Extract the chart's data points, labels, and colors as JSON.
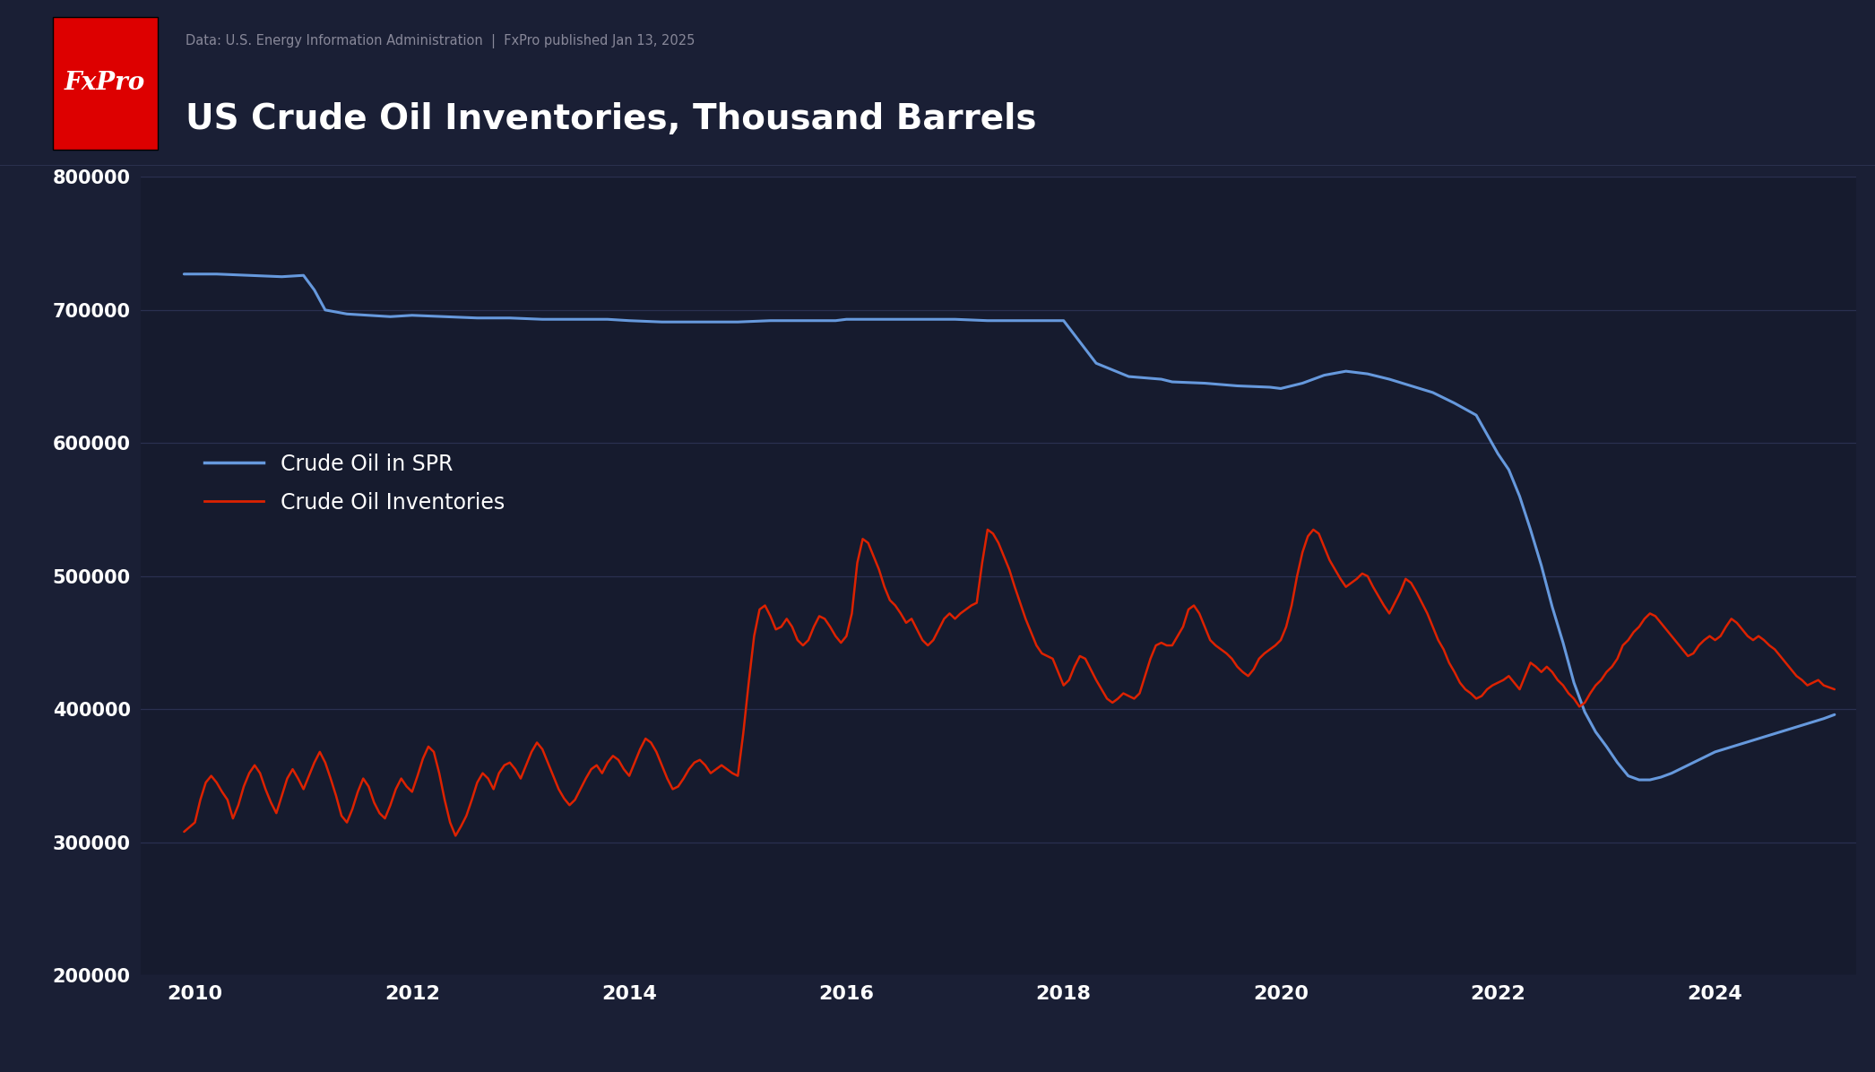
{
  "title": "US Crude Oil Inventories, Thousand Barrels",
  "subtitle": "Data: U.S. Energy Information Administration  |  FxPro published Jan 13, 2025",
  "logo_text": "FxPro",
  "background_color": "#1a1f35",
  "header_color": "#1e2338",
  "plot_bg_color": "#161b2e",
  "text_color": "#ffffff",
  "subtitle_color": "#888899",
  "grid_color": "#2a3050",
  "line_color_spr": "#6699dd",
  "line_color_inv": "#dd2200",
  "logo_bg": "#dd0000",
  "legend_spr": "Crude Oil in SPR",
  "legend_inv": "Crude Oil Inventories",
  "ylim": [
    200000,
    800000
  ],
  "yticks": [
    200000,
    300000,
    400000,
    500000,
    600000,
    700000,
    800000
  ],
  "xticks": [
    2010,
    2012,
    2014,
    2016,
    2018,
    2020,
    2022,
    2024
  ],
  "xlim_start": 2009.5,
  "xlim_end": 2025.3,
  "spr_data": [
    [
      2009.9,
      727000
    ],
    [
      2010.0,
      727000
    ],
    [
      2010.2,
      727000
    ],
    [
      2010.5,
      726000
    ],
    [
      2010.8,
      725000
    ],
    [
      2011.0,
      726000
    ],
    [
      2011.1,
      715000
    ],
    [
      2011.2,
      700000
    ],
    [
      2011.4,
      697000
    ],
    [
      2011.6,
      696000
    ],
    [
      2011.8,
      695000
    ],
    [
      2012.0,
      696000
    ],
    [
      2012.3,
      695000
    ],
    [
      2012.6,
      694000
    ],
    [
      2012.9,
      694000
    ],
    [
      2013.2,
      693000
    ],
    [
      2013.5,
      693000
    ],
    [
      2013.8,
      693000
    ],
    [
      2014.0,
      692000
    ],
    [
      2014.3,
      691000
    ],
    [
      2014.6,
      691000
    ],
    [
      2014.9,
      691000
    ],
    [
      2015.0,
      691000
    ],
    [
      2015.3,
      692000
    ],
    [
      2015.6,
      692000
    ],
    [
      2015.9,
      692000
    ],
    [
      2016.0,
      693000
    ],
    [
      2016.3,
      693000
    ],
    [
      2016.6,
      693000
    ],
    [
      2016.9,
      693000
    ],
    [
      2017.0,
      693000
    ],
    [
      2017.3,
      692000
    ],
    [
      2017.6,
      692000
    ],
    [
      2017.9,
      692000
    ],
    [
      2018.0,
      692000
    ],
    [
      2018.3,
      660000
    ],
    [
      2018.6,
      650000
    ],
    [
      2018.9,
      648000
    ],
    [
      2019.0,
      646000
    ],
    [
      2019.3,
      645000
    ],
    [
      2019.6,
      643000
    ],
    [
      2019.9,
      642000
    ],
    [
      2020.0,
      641000
    ],
    [
      2020.2,
      645000
    ],
    [
      2020.4,
      651000
    ],
    [
      2020.6,
      654000
    ],
    [
      2020.8,
      652000
    ],
    [
      2021.0,
      648000
    ],
    [
      2021.2,
      643000
    ],
    [
      2021.4,
      638000
    ],
    [
      2021.6,
      630000
    ],
    [
      2021.8,
      621000
    ],
    [
      2022.0,
      592000
    ],
    [
      2022.1,
      580000
    ],
    [
      2022.2,
      560000
    ],
    [
      2022.3,
      535000
    ],
    [
      2022.4,
      508000
    ],
    [
      2022.5,
      477000
    ],
    [
      2022.6,
      450000
    ],
    [
      2022.7,
      420000
    ],
    [
      2022.8,
      398000
    ],
    [
      2022.9,
      383000
    ],
    [
      2023.0,
      372000
    ],
    [
      2023.1,
      360000
    ],
    [
      2023.2,
      350000
    ],
    [
      2023.3,
      347000
    ],
    [
      2023.4,
      347000
    ],
    [
      2023.5,
      349000
    ],
    [
      2023.6,
      352000
    ],
    [
      2023.7,
      356000
    ],
    [
      2023.8,
      360000
    ],
    [
      2023.9,
      364000
    ],
    [
      2024.0,
      368000
    ],
    [
      2024.2,
      373000
    ],
    [
      2024.4,
      378000
    ],
    [
      2024.6,
      383000
    ],
    [
      2024.8,
      388000
    ],
    [
      2025.0,
      393000
    ],
    [
      2025.1,
      396000
    ]
  ],
  "inv_data": [
    [
      2009.9,
      308000
    ],
    [
      2010.0,
      315000
    ],
    [
      2010.05,
      332000
    ],
    [
      2010.1,
      345000
    ],
    [
      2010.15,
      350000
    ],
    [
      2010.2,
      345000
    ],
    [
      2010.25,
      338000
    ],
    [
      2010.3,
      332000
    ],
    [
      2010.35,
      318000
    ],
    [
      2010.4,
      328000
    ],
    [
      2010.45,
      342000
    ],
    [
      2010.5,
      352000
    ],
    [
      2010.55,
      358000
    ],
    [
      2010.6,
      352000
    ],
    [
      2010.65,
      340000
    ],
    [
      2010.7,
      330000
    ],
    [
      2010.75,
      322000
    ],
    [
      2010.8,
      335000
    ],
    [
      2010.85,
      348000
    ],
    [
      2010.9,
      355000
    ],
    [
      2010.95,
      348000
    ],
    [
      2011.0,
      340000
    ],
    [
      2011.05,
      350000
    ],
    [
      2011.1,
      360000
    ],
    [
      2011.15,
      368000
    ],
    [
      2011.2,
      360000
    ],
    [
      2011.25,
      348000
    ],
    [
      2011.3,
      335000
    ],
    [
      2011.35,
      320000
    ],
    [
      2011.4,
      315000
    ],
    [
      2011.45,
      325000
    ],
    [
      2011.5,
      338000
    ],
    [
      2011.55,
      348000
    ],
    [
      2011.6,
      342000
    ],
    [
      2011.65,
      330000
    ],
    [
      2011.7,
      322000
    ],
    [
      2011.75,
      318000
    ],
    [
      2011.8,
      328000
    ],
    [
      2011.85,
      340000
    ],
    [
      2011.9,
      348000
    ],
    [
      2011.95,
      342000
    ],
    [
      2012.0,
      338000
    ],
    [
      2012.05,
      350000
    ],
    [
      2012.1,
      363000
    ],
    [
      2012.15,
      372000
    ],
    [
      2012.2,
      368000
    ],
    [
      2012.25,
      352000
    ],
    [
      2012.3,
      332000
    ],
    [
      2012.35,
      315000
    ],
    [
      2012.4,
      305000
    ],
    [
      2012.45,
      312000
    ],
    [
      2012.5,
      320000
    ],
    [
      2012.55,
      332000
    ],
    [
      2012.6,
      345000
    ],
    [
      2012.65,
      352000
    ],
    [
      2012.7,
      348000
    ],
    [
      2012.75,
      340000
    ],
    [
      2012.8,
      352000
    ],
    [
      2012.85,
      358000
    ],
    [
      2012.9,
      360000
    ],
    [
      2012.95,
      355000
    ],
    [
      2013.0,
      348000
    ],
    [
      2013.05,
      358000
    ],
    [
      2013.1,
      368000
    ],
    [
      2013.15,
      375000
    ],
    [
      2013.2,
      370000
    ],
    [
      2013.25,
      360000
    ],
    [
      2013.3,
      350000
    ],
    [
      2013.35,
      340000
    ],
    [
      2013.4,
      333000
    ],
    [
      2013.45,
      328000
    ],
    [
      2013.5,
      332000
    ],
    [
      2013.55,
      340000
    ],
    [
      2013.6,
      348000
    ],
    [
      2013.65,
      355000
    ],
    [
      2013.7,
      358000
    ],
    [
      2013.75,
      352000
    ],
    [
      2013.8,
      360000
    ],
    [
      2013.85,
      365000
    ],
    [
      2013.9,
      362000
    ],
    [
      2013.95,
      355000
    ],
    [
      2014.0,
      350000
    ],
    [
      2014.05,
      360000
    ],
    [
      2014.1,
      370000
    ],
    [
      2014.15,
      378000
    ],
    [
      2014.2,
      375000
    ],
    [
      2014.25,
      368000
    ],
    [
      2014.3,
      358000
    ],
    [
      2014.35,
      348000
    ],
    [
      2014.4,
      340000
    ],
    [
      2014.45,
      342000
    ],
    [
      2014.5,
      348000
    ],
    [
      2014.55,
      355000
    ],
    [
      2014.6,
      360000
    ],
    [
      2014.65,
      362000
    ],
    [
      2014.7,
      358000
    ],
    [
      2014.75,
      352000
    ],
    [
      2014.8,
      355000
    ],
    [
      2014.85,
      358000
    ],
    [
      2014.9,
      355000
    ],
    [
      2014.95,
      352000
    ],
    [
      2015.0,
      350000
    ],
    [
      2015.05,
      382000
    ],
    [
      2015.1,
      420000
    ],
    [
      2015.15,
      455000
    ],
    [
      2015.2,
      475000
    ],
    [
      2015.25,
      478000
    ],
    [
      2015.3,
      470000
    ],
    [
      2015.35,
      460000
    ],
    [
      2015.4,
      462000
    ],
    [
      2015.45,
      468000
    ],
    [
      2015.5,
      462000
    ],
    [
      2015.55,
      452000
    ],
    [
      2015.6,
      448000
    ],
    [
      2015.65,
      452000
    ],
    [
      2015.7,
      462000
    ],
    [
      2015.75,
      470000
    ],
    [
      2015.8,
      468000
    ],
    [
      2015.85,
      462000
    ],
    [
      2015.9,
      455000
    ],
    [
      2015.95,
      450000
    ],
    [
      2016.0,
      455000
    ],
    [
      2016.05,
      472000
    ],
    [
      2016.1,
      510000
    ],
    [
      2016.15,
      528000
    ],
    [
      2016.2,
      525000
    ],
    [
      2016.25,
      515000
    ],
    [
      2016.3,
      505000
    ],
    [
      2016.35,
      492000
    ],
    [
      2016.4,
      482000
    ],
    [
      2016.45,
      478000
    ],
    [
      2016.5,
      472000
    ],
    [
      2016.55,
      465000
    ],
    [
      2016.6,
      468000
    ],
    [
      2016.65,
      460000
    ],
    [
      2016.7,
      452000
    ],
    [
      2016.75,
      448000
    ],
    [
      2016.8,
      452000
    ],
    [
      2016.85,
      460000
    ],
    [
      2016.9,
      468000
    ],
    [
      2016.95,
      472000
    ],
    [
      2017.0,
      468000
    ],
    [
      2017.05,
      472000
    ],
    [
      2017.1,
      475000
    ],
    [
      2017.15,
      478000
    ],
    [
      2017.2,
      480000
    ],
    [
      2017.25,
      510000
    ],
    [
      2017.3,
      535000
    ],
    [
      2017.35,
      532000
    ],
    [
      2017.4,
      525000
    ],
    [
      2017.45,
      515000
    ],
    [
      2017.5,
      505000
    ],
    [
      2017.55,
      492000
    ],
    [
      2017.6,
      480000
    ],
    [
      2017.65,
      468000
    ],
    [
      2017.7,
      458000
    ],
    [
      2017.75,
      448000
    ],
    [
      2017.8,
      442000
    ],
    [
      2017.85,
      440000
    ],
    [
      2017.9,
      438000
    ],
    [
      2017.95,
      428000
    ],
    [
      2018.0,
      418000
    ],
    [
      2018.05,
      422000
    ],
    [
      2018.1,
      432000
    ],
    [
      2018.15,
      440000
    ],
    [
      2018.2,
      438000
    ],
    [
      2018.25,
      430000
    ],
    [
      2018.3,
      422000
    ],
    [
      2018.35,
      415000
    ],
    [
      2018.4,
      408000
    ],
    [
      2018.45,
      405000
    ],
    [
      2018.5,
      408000
    ],
    [
      2018.55,
      412000
    ],
    [
      2018.6,
      410000
    ],
    [
      2018.65,
      408000
    ],
    [
      2018.7,
      412000
    ],
    [
      2018.75,
      425000
    ],
    [
      2018.8,
      438000
    ],
    [
      2018.85,
      448000
    ],
    [
      2018.9,
      450000
    ],
    [
      2018.95,
      448000
    ],
    [
      2019.0,
      448000
    ],
    [
      2019.05,
      455000
    ],
    [
      2019.1,
      462000
    ],
    [
      2019.15,
      475000
    ],
    [
      2019.2,
      478000
    ],
    [
      2019.25,
      472000
    ],
    [
      2019.3,
      462000
    ],
    [
      2019.35,
      452000
    ],
    [
      2019.4,
      448000
    ],
    [
      2019.45,
      445000
    ],
    [
      2019.5,
      442000
    ],
    [
      2019.55,
      438000
    ],
    [
      2019.6,
      432000
    ],
    [
      2019.65,
      428000
    ],
    [
      2019.7,
      425000
    ],
    [
      2019.75,
      430000
    ],
    [
      2019.8,
      438000
    ],
    [
      2019.85,
      442000
    ],
    [
      2019.9,
      445000
    ],
    [
      2019.95,
      448000
    ],
    [
      2020.0,
      452000
    ],
    [
      2020.05,
      462000
    ],
    [
      2020.1,
      478000
    ],
    [
      2020.15,
      500000
    ],
    [
      2020.2,
      518000
    ],
    [
      2020.25,
      530000
    ],
    [
      2020.3,
      535000
    ],
    [
      2020.35,
      532000
    ],
    [
      2020.4,
      522000
    ],
    [
      2020.45,
      512000
    ],
    [
      2020.5,
      505000
    ],
    [
      2020.55,
      498000
    ],
    [
      2020.6,
      492000
    ],
    [
      2020.65,
      495000
    ],
    [
      2020.7,
      498000
    ],
    [
      2020.75,
      502000
    ],
    [
      2020.8,
      500000
    ],
    [
      2020.85,
      492000
    ],
    [
      2020.9,
      485000
    ],
    [
      2020.95,
      478000
    ],
    [
      2021.0,
      472000
    ],
    [
      2021.05,
      480000
    ],
    [
      2021.1,
      488000
    ],
    [
      2021.15,
      498000
    ],
    [
      2021.2,
      495000
    ],
    [
      2021.25,
      488000
    ],
    [
      2021.3,
      480000
    ],
    [
      2021.35,
      472000
    ],
    [
      2021.4,
      462000
    ],
    [
      2021.45,
      452000
    ],
    [
      2021.5,
      445000
    ],
    [
      2021.55,
      435000
    ],
    [
      2021.6,
      428000
    ],
    [
      2021.65,
      420000
    ],
    [
      2021.7,
      415000
    ],
    [
      2021.75,
      412000
    ],
    [
      2021.8,
      408000
    ],
    [
      2021.85,
      410000
    ],
    [
      2021.9,
      415000
    ],
    [
      2021.95,
      418000
    ],
    [
      2022.0,
      420000
    ],
    [
      2022.05,
      422000
    ],
    [
      2022.1,
      425000
    ],
    [
      2022.15,
      420000
    ],
    [
      2022.2,
      415000
    ],
    [
      2022.25,
      425000
    ],
    [
      2022.3,
      435000
    ],
    [
      2022.35,
      432000
    ],
    [
      2022.4,
      428000
    ],
    [
      2022.45,
      432000
    ],
    [
      2022.5,
      428000
    ],
    [
      2022.55,
      422000
    ],
    [
      2022.6,
      418000
    ],
    [
      2022.65,
      412000
    ],
    [
      2022.7,
      408000
    ],
    [
      2022.75,
      402000
    ],
    [
      2022.8,
      405000
    ],
    [
      2022.85,
      412000
    ],
    [
      2022.9,
      418000
    ],
    [
      2022.95,
      422000
    ],
    [
      2023.0,
      428000
    ],
    [
      2023.05,
      432000
    ],
    [
      2023.1,
      438000
    ],
    [
      2023.15,
      448000
    ],
    [
      2023.2,
      452000
    ],
    [
      2023.25,
      458000
    ],
    [
      2023.3,
      462000
    ],
    [
      2023.35,
      468000
    ],
    [
      2023.4,
      472000
    ],
    [
      2023.45,
      470000
    ],
    [
      2023.5,
      465000
    ],
    [
      2023.55,
      460000
    ],
    [
      2023.6,
      455000
    ],
    [
      2023.65,
      450000
    ],
    [
      2023.7,
      445000
    ],
    [
      2023.75,
      440000
    ],
    [
      2023.8,
      442000
    ],
    [
      2023.85,
      448000
    ],
    [
      2023.9,
      452000
    ],
    [
      2023.95,
      455000
    ],
    [
      2024.0,
      452000
    ],
    [
      2024.05,
      455000
    ],
    [
      2024.1,
      462000
    ],
    [
      2024.15,
      468000
    ],
    [
      2024.2,
      465000
    ],
    [
      2024.25,
      460000
    ],
    [
      2024.3,
      455000
    ],
    [
      2024.35,
      452000
    ],
    [
      2024.4,
      455000
    ],
    [
      2024.45,
      452000
    ],
    [
      2024.5,
      448000
    ],
    [
      2024.55,
      445000
    ],
    [
      2024.6,
      440000
    ],
    [
      2024.65,
      435000
    ],
    [
      2024.7,
      430000
    ],
    [
      2024.75,
      425000
    ],
    [
      2024.8,
      422000
    ],
    [
      2024.85,
      418000
    ],
    [
      2024.9,
      420000
    ],
    [
      2024.95,
      422000
    ],
    [
      2025.0,
      418000
    ],
    [
      2025.1,
      415000
    ]
  ]
}
